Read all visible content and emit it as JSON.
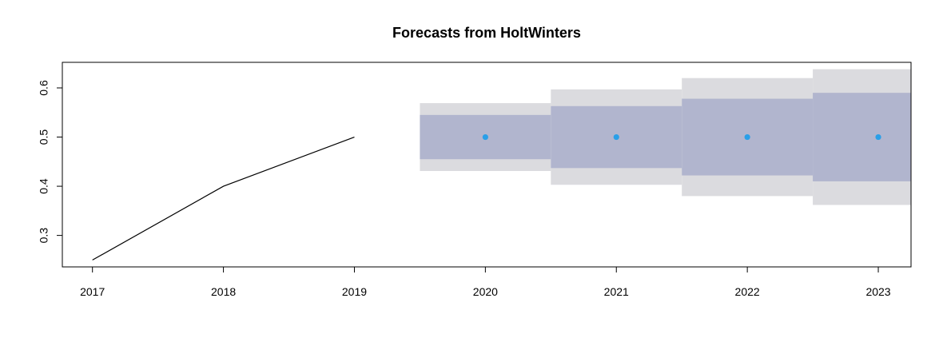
{
  "chart_data": {
    "type": "line",
    "title": "Forecasts from HoltWinters",
    "xlabel": "",
    "ylabel": "",
    "xlim": [
      2016.77,
      2023.25
    ],
    "ylim": [
      0.236,
      0.652
    ],
    "grid": false,
    "x_ticks": [
      2017,
      2018,
      2019,
      2020,
      2021,
      2022,
      2023
    ],
    "y_ticks": [
      0.3,
      0.4,
      0.5,
      0.6
    ],
    "x_tick_labels": [
      "2017",
      "2018",
      "2019",
      "2020",
      "2021",
      "2022",
      "2023"
    ],
    "y_tick_labels": [
      "0.3",
      "0.4",
      "0.5",
      "0.6"
    ],
    "observed": {
      "x": [
        2017,
        2018,
        2019
      ],
      "y": [
        0.25,
        0.4,
        0.5
      ],
      "color": "#000000"
    },
    "forecast": {
      "x": [
        2020,
        2021,
        2022,
        2023
      ],
      "y": [
        0.5,
        0.5,
        0.5,
        0.5
      ],
      "color": "#2A9FE8"
    },
    "intervals": {
      "x": [
        2020,
        2021,
        2022,
        2023
      ],
      "lo80": [
        0.455,
        0.437,
        0.422,
        0.41
      ],
      "hi80": [
        0.545,
        0.563,
        0.578,
        0.59
      ],
      "lo95": [
        0.431,
        0.403,
        0.38,
        0.362
      ],
      "hi95": [
        0.569,
        0.597,
        0.62,
        0.638
      ],
      "color80": "#B1B5CE",
      "color95": "#DBDBDF"
    }
  }
}
